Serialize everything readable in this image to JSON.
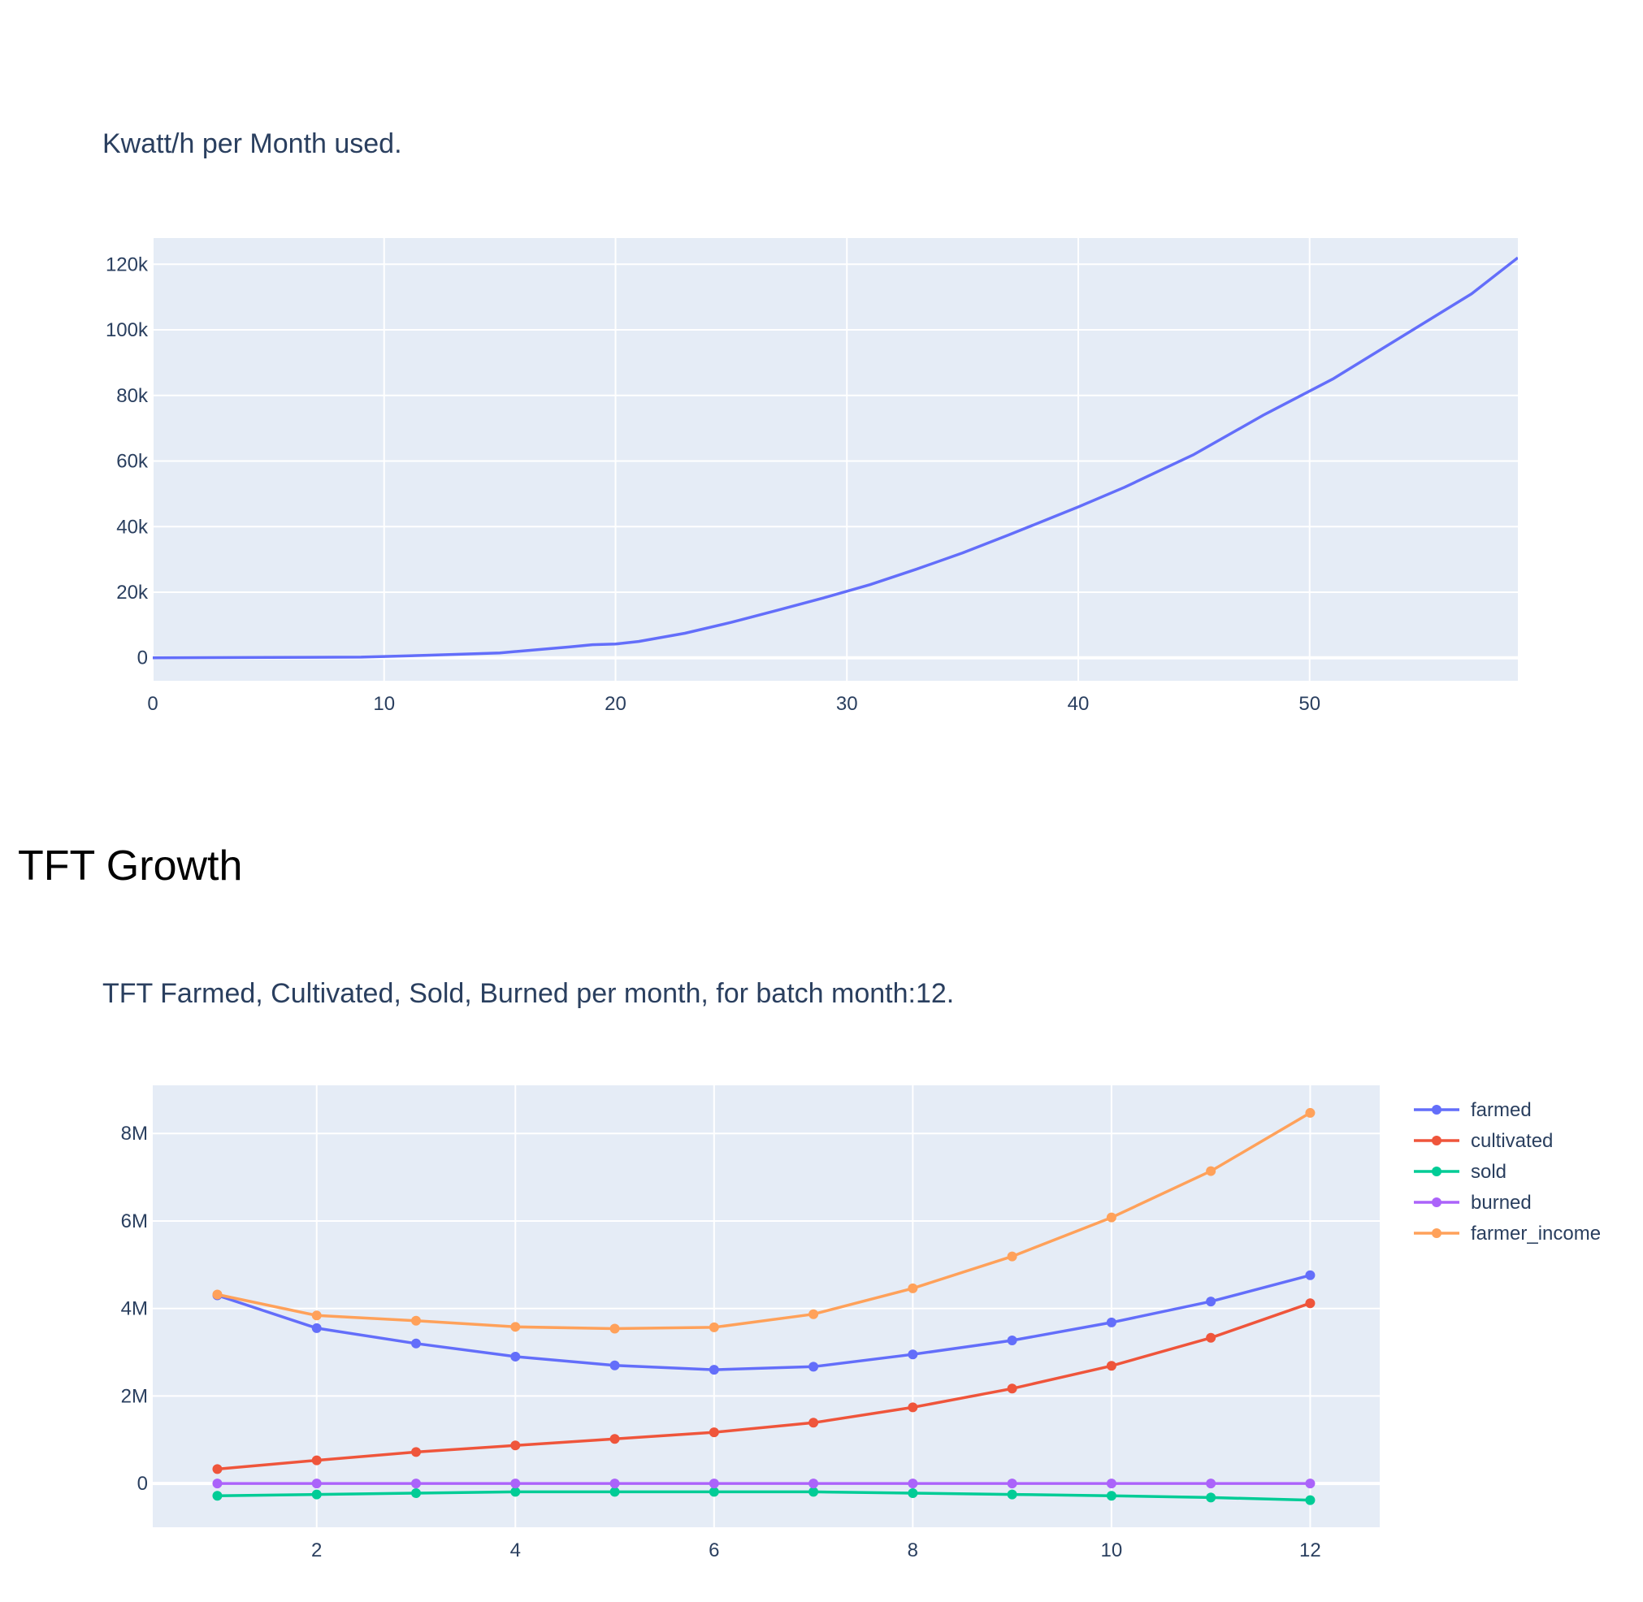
{
  "section_heading": "TFT Growth",
  "colors": {
    "plot_bg": "#e5ecf6",
    "grid": "#ffffff",
    "text": "#2a3f5f",
    "farmed": "#636efa",
    "cultivated": "#ef553b",
    "sold": "#00cc96",
    "burned": "#ab63fa",
    "farmer_income": "#ffa15a"
  },
  "chart_data": [
    {
      "type": "line",
      "title": "Kwatt/h per Month used.",
      "xlabel": "",
      "ylabel": "",
      "xlim": [
        0,
        59
      ],
      "ylim": [
        -7000,
        128000
      ],
      "x_ticks": [
        0,
        10,
        20,
        30,
        40,
        50
      ],
      "x_tick_labels": [
        "0",
        "10",
        "20",
        "30",
        "40",
        "50"
      ],
      "y_ticks": [
        0,
        20000,
        40000,
        60000,
        80000,
        100000,
        120000
      ],
      "y_tick_labels": [
        "0",
        "20k",
        "40k",
        "60k",
        "80k",
        "100k",
        "120k"
      ],
      "grid": true,
      "legend": "none",
      "series": [
        {
          "color": "#636efa",
          "x": [
            0,
            5,
            9,
            10,
            12,
            15,
            18,
            19,
            20,
            21,
            23,
            25,
            27,
            29,
            31,
            33,
            35,
            37,
            40,
            42,
            45,
            48,
            51,
            54,
            57,
            59
          ],
          "y": [
            0,
            100,
            200,
            400,
            800,
            1500,
            3300,
            4000,
            4200,
            5000,
            7500,
            10800,
            14500,
            18300,
            22300,
            27000,
            32000,
            37500,
            46000,
            52000,
            62000,
            74000,
            85000,
            98000,
            111000,
            122000
          ]
        }
      ]
    },
    {
      "type": "line",
      "title": "TFT Farmed, Cultivated, Sold, Burned per month, for batch month:12.",
      "xlabel": "",
      "ylabel": "",
      "xlim": [
        0.35,
        12.7
      ],
      "ylim": [
        -1000000,
        9100000
      ],
      "x_ticks": [
        2,
        4,
        6,
        8,
        10,
        12
      ],
      "x_tick_labels": [
        "2",
        "4",
        "6",
        "8",
        "10",
        "12"
      ],
      "y_ticks": [
        0,
        2000000,
        4000000,
        6000000,
        8000000
      ],
      "y_tick_labels": [
        "0",
        "2M",
        "4M",
        "6M",
        "8M"
      ],
      "grid": true,
      "legend": "top-right",
      "x": [
        1,
        2,
        3,
        4,
        5,
        6,
        7,
        8,
        9,
        10,
        11,
        12
      ],
      "series": [
        {
          "name": "farmed",
          "color": "#636efa",
          "values": [
            4300000,
            3550000,
            3200000,
            2900000,
            2700000,
            2600000,
            2670000,
            2950000,
            3270000,
            3680000,
            4160000,
            4760000
          ]
        },
        {
          "name": "cultivated",
          "color": "#ef553b",
          "values": [
            330000,
            530000,
            720000,
            870000,
            1020000,
            1170000,
            1390000,
            1740000,
            2170000,
            2690000,
            3330000,
            4120000
          ]
        },
        {
          "name": "sold",
          "color": "#00cc96",
          "values": [
            -280000,
            -250000,
            -220000,
            -190000,
            -190000,
            -190000,
            -190000,
            -220000,
            -250000,
            -280000,
            -320000,
            -380000
          ]
        },
        {
          "name": "burned",
          "color": "#ab63fa",
          "values": [
            0,
            0,
            0,
            0,
            0,
            0,
            0,
            0,
            0,
            0,
            0,
            0
          ]
        },
        {
          "name": "farmer_income",
          "color": "#ffa15a",
          "values": [
            4320000,
            3840000,
            3720000,
            3580000,
            3540000,
            3570000,
            3870000,
            4460000,
            5190000,
            6080000,
            7140000,
            8470000
          ]
        }
      ]
    }
  ]
}
